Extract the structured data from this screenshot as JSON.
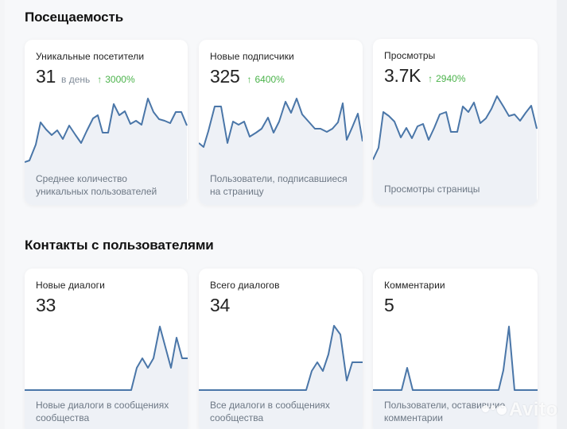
{
  "sections": [
    {
      "title": "Посещаемость",
      "cards": [
        {
          "title": "Уникальные посетители",
          "value": "31",
          "unit": "в день",
          "growth": "3000%",
          "growth_icon": "arrow-up-icon",
          "description_lines": [
            "Среднее количество",
            "уникальных пользователей"
          ]
        },
        {
          "title": "Новые подписчики",
          "value": "325",
          "unit": "",
          "growth": "6400%",
          "growth_icon": "arrow-up-icon",
          "description_lines": [
            "Пользователи, подписавшиеся",
            "на страницу"
          ]
        },
        {
          "title": "Просмотры",
          "value": "3.7K",
          "unit": "",
          "growth": "2940%",
          "growth_icon": "arrow-up-icon",
          "description_lines": [
            "Просмотры страницы"
          ]
        }
      ]
    },
    {
      "title": "Контакты с пользователями",
      "cards": [
        {
          "title": "Новые диалоги",
          "value": "33",
          "description_lines": [
            "Новые диалоги в сообщениях",
            "сообщества"
          ]
        },
        {
          "title": "Всего диалогов",
          "value": "34",
          "description_lines": [
            "Все диалоги в сообщениях",
            "сообщества"
          ]
        },
        {
          "title": "Комментарии",
          "value": "5",
          "description_lines": [
            "Пользователи, оставившие",
            "комментарии"
          ]
        }
      ]
    }
  ],
  "colors": {
    "line": "#4a76a8",
    "area": "#eef1f6",
    "growth": "#4bb34b",
    "muted_text": "#818c99"
  },
  "watermark": "Avito",
  "sparklines": [
    [
      [
        0,
        154
      ],
      [
        6,
        152
      ],
      [
        14,
        132
      ],
      [
        20,
        104
      ],
      [
        27,
        113
      ],
      [
        34,
        120
      ],
      [
        41,
        114
      ],
      [
        48,
        125
      ],
      [
        56,
        108
      ],
      [
        64,
        120
      ],
      [
        71,
        130
      ],
      [
        78,
        115
      ],
      [
        86,
        99
      ],
      [
        92,
        95
      ],
      [
        98,
        117
      ],
      [
        105,
        117
      ],
      [
        112,
        81
      ],
      [
        119,
        95
      ],
      [
        126,
        90
      ],
      [
        133,
        106
      ],
      [
        140,
        102
      ],
      [
        147,
        107
      ],
      [
        155,
        74
      ],
      [
        162,
        91
      ],
      [
        169,
        100
      ],
      [
        176,
        102
      ],
      [
        183,
        105
      ],
      [
        190,
        91
      ],
      [
        197,
        91
      ],
      [
        204,
        108
      ]
    ],
    [
      [
        0,
        130
      ],
      [
        6,
        135
      ],
      [
        12,
        115
      ],
      [
        20,
        84
      ],
      [
        28,
        84
      ],
      [
        36,
        130
      ],
      [
        43,
        103
      ],
      [
        50,
        107
      ],
      [
        57,
        103
      ],
      [
        64,
        122
      ],
      [
        72,
        117
      ],
      [
        79,
        112
      ],
      [
        87,
        98
      ],
      [
        94,
        117
      ],
      [
        101,
        103
      ],
      [
        109,
        78
      ],
      [
        116,
        92
      ],
      [
        123,
        74
      ],
      [
        130,
        94
      ],
      [
        138,
        103
      ],
      [
        146,
        112
      ],
      [
        153,
        112
      ],
      [
        161,
        116
      ],
      [
        168,
        112
      ],
      [
        175,
        104
      ],
      [
        181,
        80
      ],
      [
        186,
        126
      ],
      [
        193,
        110
      ],
      [
        200,
        93
      ],
      [
        206,
        128
      ]
    ],
    [
      [
        0,
        152
      ],
      [
        7,
        137
      ],
      [
        13,
        92
      ],
      [
        20,
        97
      ],
      [
        27,
        104
      ],
      [
        35,
        124
      ],
      [
        42,
        112
      ],
      [
        49,
        125
      ],
      [
        56,
        110
      ],
      [
        63,
        107
      ],
      [
        70,
        127
      ],
      [
        77,
        112
      ],
      [
        84,
        95
      ],
      [
        92,
        92
      ],
      [
        98,
        117
      ],
      [
        106,
        117
      ],
      [
        113,
        85
      ],
      [
        120,
        92
      ],
      [
        127,
        80
      ],
      [
        135,
        106
      ],
      [
        142,
        100
      ],
      [
        149,
        88
      ],
      [
        156,
        72
      ],
      [
        164,
        85
      ],
      [
        171,
        97
      ],
      [
        178,
        95
      ],
      [
        185,
        103
      ],
      [
        192,
        93
      ],
      [
        199,
        84
      ],
      [
        206,
        113
      ]
    ],
    [
      [
        0,
        153
      ],
      [
        134,
        153
      ],
      [
        141,
        125
      ],
      [
        148,
        113
      ],
      [
        155,
        125
      ],
      [
        162,
        113
      ],
      [
        170,
        73
      ],
      [
        177,
        99
      ],
      [
        184,
        125
      ],
      [
        191,
        87
      ],
      [
        198,
        113
      ],
      [
        205,
        113
      ]
    ],
    [
      [
        0,
        153
      ],
      [
        135,
        153
      ],
      [
        142,
        129
      ],
      [
        149,
        118
      ],
      [
        156,
        129
      ],
      [
        163,
        108
      ],
      [
        170,
        72
      ],
      [
        178,
        83
      ],
      [
        186,
        141
      ],
      [
        193,
        118
      ],
      [
        200,
        118
      ],
      [
        206,
        118
      ]
    ],
    [
      [
        0,
        153
      ],
      [
        36,
        153
      ],
      [
        43,
        125
      ],
      [
        50,
        153
      ],
      [
        158,
        153
      ],
      [
        164,
        128
      ],
      [
        171,
        73
      ],
      [
        178,
        153
      ],
      [
        207,
        153
      ]
    ]
  ]
}
